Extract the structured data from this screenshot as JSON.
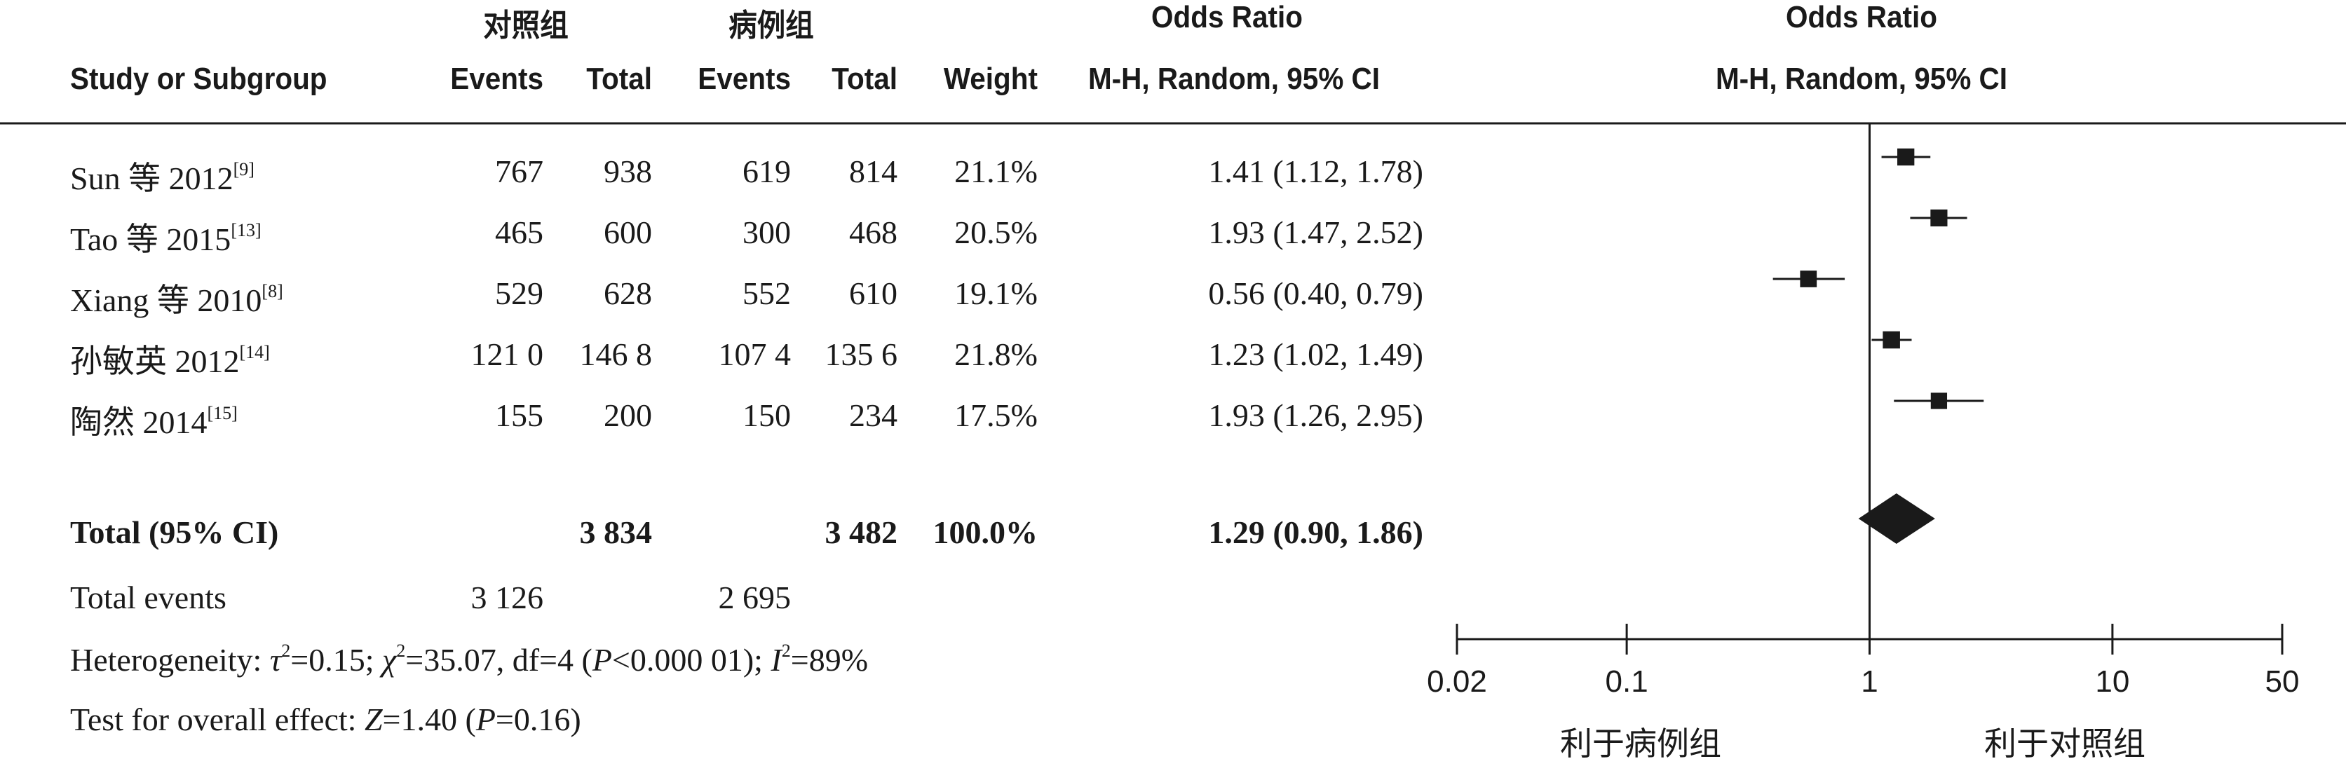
{
  "header": {
    "control_group": "对照组",
    "case_group": "病例组",
    "odds_ratio_col": "Odds Ratio",
    "odds_ratio_plot": "Odds Ratio",
    "study_or_subgroup": "Study or Subgroup",
    "events1": "Events",
    "total1": "Total",
    "events2": "Events",
    "total2": "Total",
    "weight": "Weight",
    "method_col": "M-H, Random, 95% CI",
    "method_plot": "M-H, Random, 95% CI"
  },
  "studies": [
    {
      "name": "Sun 等 2012",
      "ref": "[9]",
      "events1": "767",
      "total1": "938",
      "events2": "619",
      "total2": "814",
      "weight": "21.1%",
      "ci_text": "1.41 (1.12, 1.78)"
    },
    {
      "name": "Tao 等 2015",
      "ref": "[13]",
      "events1": "465",
      "total1": "600",
      "events2": "300",
      "total2": "468",
      "weight": "20.5%",
      "ci_text": "1.93 (1.47, 2.52)"
    },
    {
      "name": "Xiang 等 2010",
      "ref": "[8]",
      "events1": "529",
      "total1": "628",
      "events2": "552",
      "total2": "610",
      "weight": "19.1%",
      "ci_text": "0.56 (0.40, 0.79)"
    },
    {
      "name": "孙敏英 2012",
      "ref": "[14]",
      "events1": "121 0",
      "total1": "146 8",
      "events2": "107 4",
      "total2": "135 6",
      "weight": "21.8%",
      "ci_text": "1.23 (1.02, 1.49)"
    },
    {
      "name": "陶然 2014",
      "ref": "[15]",
      "events1": "155",
      "total1": "200",
      "events2": "150",
      "total2": "234",
      "weight": "17.5%",
      "ci_text": "1.93 (1.26, 2.95)"
    }
  ],
  "total": {
    "label": "Total (95% CI)",
    "total1": "3 834",
    "total2": "3 482",
    "weight": "100.0%",
    "ci_text": "1.29 (0.90, 1.86)"
  },
  "total_events": {
    "label": "Total events",
    "events1": "3 126",
    "events2": "2 695"
  },
  "footer": {
    "heterogeneity": {
      "prefix": "Heterogeneity: ",
      "tau": "τ",
      "tau_val": "=0.15; ",
      "chi": "χ",
      "chi_val": "=35.07, df=4 (",
      "p": "P",
      "p_val": "<0.000 01); ",
      "i": "I",
      "i_val": "=89%"
    },
    "overall": {
      "prefix": "Test for overall effect: ",
      "z": "Z",
      "z_val": "=1.40 (",
      "p": "P",
      "p_val": "=0.16)"
    }
  },
  "axis": {
    "tick_labels": [
      "0.02",
      "0.1",
      "1",
      "10",
      "50"
    ],
    "favors_left": "利于病例组",
    "favors_right": "利于对照组"
  },
  "colors": {
    "ink": "#1a1a1a"
  },
  "chart_data": {
    "type": "forest",
    "scale": "log",
    "xlim": [
      0.02,
      50
    ],
    "x_ticks": [
      0.02,
      0.1,
      1,
      10,
      50
    ],
    "reference_line": 1,
    "studies": [
      {
        "name": "Sun 等 2012",
        "or": 1.41,
        "lo": 1.12,
        "hi": 1.78,
        "weight": 21.1
      },
      {
        "name": "Tao 等 2015",
        "or": 1.93,
        "lo": 1.47,
        "hi": 2.52,
        "weight": 20.5
      },
      {
        "name": "Xiang 等 2010",
        "or": 0.56,
        "lo": 0.4,
        "hi": 0.79,
        "weight": 19.1
      },
      {
        "name": "孙敏英 2012",
        "or": 1.23,
        "lo": 1.02,
        "hi": 1.49,
        "weight": 21.8
      },
      {
        "name": "陶然 2014",
        "or": 1.93,
        "lo": 1.26,
        "hi": 2.95,
        "weight": 17.5
      }
    ],
    "pooled": {
      "or": 1.29,
      "lo": 0.9,
      "hi": 1.86
    }
  }
}
